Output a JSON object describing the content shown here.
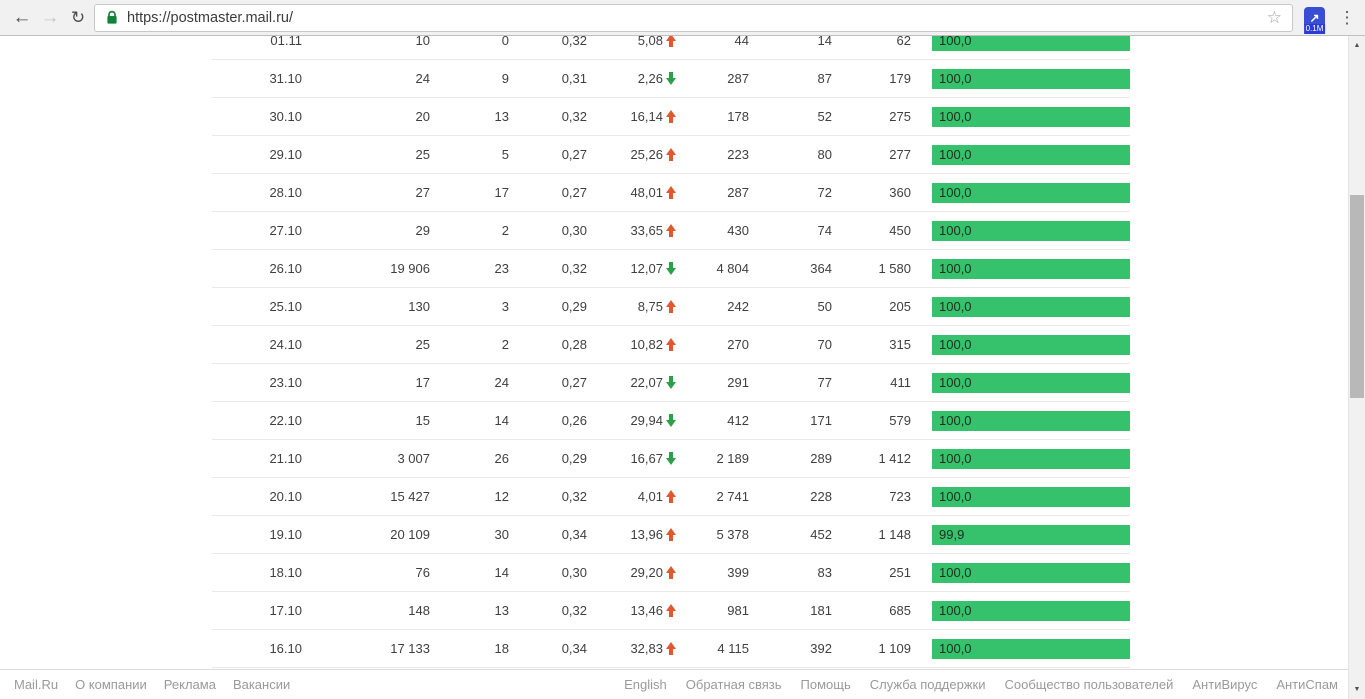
{
  "browser": {
    "url": "https://postmaster.mail.ru/",
    "back_icon": "←",
    "forward_icon": "→",
    "reload_icon": "↻",
    "bookmark_star_icon": "☆",
    "extension_arrow_icon": "↗",
    "extension_badge": "0.1M",
    "menu_icon": "⋮"
  },
  "scrollbar": {
    "up_icon": "▲",
    "down_icon": "▼"
  },
  "table": {
    "rows": [
      {
        "date": "01.11",
        "c2": "10",
        "c3": "0",
        "c4": "0,32",
        "c5": "5,08",
        "trend": "up",
        "c6": "44",
        "c7": "14",
        "c8": "62",
        "bar": "100,0",
        "bar_value": 100
      },
      {
        "date": "31.10",
        "c2": "24",
        "c3": "9",
        "c4": "0,31",
        "c5": "2,26",
        "trend": "down",
        "c6": "287",
        "c7": "87",
        "c8": "179",
        "bar": "100,0",
        "bar_value": 100
      },
      {
        "date": "30.10",
        "c2": "20",
        "c3": "13",
        "c4": "0,32",
        "c5": "16,14",
        "trend": "up",
        "c6": "178",
        "c7": "52",
        "c8": "275",
        "bar": "100,0",
        "bar_value": 100
      },
      {
        "date": "29.10",
        "c2": "25",
        "c3": "5",
        "c4": "0,27",
        "c5": "25,26",
        "trend": "up",
        "c6": "223",
        "c7": "80",
        "c8": "277",
        "bar": "100,0",
        "bar_value": 100
      },
      {
        "date": "28.10",
        "c2": "27",
        "c3": "17",
        "c4": "0,27",
        "c5": "48,01",
        "trend": "up",
        "c6": "287",
        "c7": "72",
        "c8": "360",
        "bar": "100,0",
        "bar_value": 100
      },
      {
        "date": "27.10",
        "c2": "29",
        "c3": "2",
        "c4": "0,30",
        "c5": "33,65",
        "trend": "up",
        "c6": "430",
        "c7": "74",
        "c8": "450",
        "bar": "100,0",
        "bar_value": 100
      },
      {
        "date": "26.10",
        "c2": "19 906",
        "c3": "23",
        "c4": "0,32",
        "c5": "12,07",
        "trend": "down",
        "c6": "4 804",
        "c7": "364",
        "c8": "1 580",
        "bar": "100,0",
        "bar_value": 100
      },
      {
        "date": "25.10",
        "c2": "130",
        "c3": "3",
        "c4": "0,29",
        "c5": "8,75",
        "trend": "up",
        "c6": "242",
        "c7": "50",
        "c8": "205",
        "bar": "100,0",
        "bar_value": 100
      },
      {
        "date": "24.10",
        "c2": "25",
        "c3": "2",
        "c4": "0,28",
        "c5": "10,82",
        "trend": "up",
        "c6": "270",
        "c7": "70",
        "c8": "315",
        "bar": "100,0",
        "bar_value": 100
      },
      {
        "date": "23.10",
        "c2": "17",
        "c3": "24",
        "c4": "0,27",
        "c5": "22,07",
        "trend": "down",
        "c6": "291",
        "c7": "77",
        "c8": "411",
        "bar": "100,0",
        "bar_value": 100
      },
      {
        "date": "22.10",
        "c2": "15",
        "c3": "14",
        "c4": "0,26",
        "c5": "29,94",
        "trend": "down",
        "c6": "412",
        "c7": "171",
        "c8": "579",
        "bar": "100,0",
        "bar_value": 100
      },
      {
        "date": "21.10",
        "c2": "3 007",
        "c3": "26",
        "c4": "0,29",
        "c5": "16,67",
        "trend": "down",
        "c6": "2 189",
        "c7": "289",
        "c8": "1 412",
        "bar": "100,0",
        "bar_value": 100
      },
      {
        "date": "20.10",
        "c2": "15 427",
        "c3": "12",
        "c4": "0,32",
        "c5": "4,01",
        "trend": "up",
        "c6": "2 741",
        "c7": "228",
        "c8": "723",
        "bar": "100,0",
        "bar_value": 100
      },
      {
        "date": "19.10",
        "c2": "20 109",
        "c3": "30",
        "c4": "0,34",
        "c5": "13,96",
        "trend": "up",
        "c6": "5 378",
        "c7": "452",
        "c8": "1 148",
        "bar": "99,9",
        "bar_value": 99.9
      },
      {
        "date": "18.10",
        "c2": "76",
        "c3": "14",
        "c4": "0,30",
        "c5": "29,20",
        "trend": "up",
        "c6": "399",
        "c7": "83",
        "c8": "251",
        "bar": "100,0",
        "bar_value": 100
      },
      {
        "date": "17.10",
        "c2": "148",
        "c3": "13",
        "c4": "0,32",
        "c5": "13,46",
        "trend": "up",
        "c6": "981",
        "c7": "181",
        "c8": "685",
        "bar": "100,0",
        "bar_value": 100
      },
      {
        "date": "16.10",
        "c2": "17 133",
        "c3": "18",
        "c4": "0,34",
        "c5": "32,83",
        "trend": "up",
        "c6": "4 115",
        "c7": "392",
        "c8": "1 109",
        "bar": "100,0",
        "bar_value": 100
      }
    ]
  },
  "footer": {
    "left_links": [
      "Mail.Ru",
      "О компании",
      "Реклама",
      "Вакансии"
    ],
    "right_links": [
      "English",
      "Обратная связь",
      "Помощь",
      "Служба поддержки",
      "Сообщество пользователей",
      "АнтиВирус",
      "АнтиСпам"
    ]
  },
  "colors": {
    "bar_green": "#36c16c",
    "trend_up": "#e2572c",
    "trend_down": "#2aa148",
    "lock_green": "#12813a",
    "ext_blue": "#3a4ed5",
    "ext_badge_blue": "#2b3cd6"
  }
}
